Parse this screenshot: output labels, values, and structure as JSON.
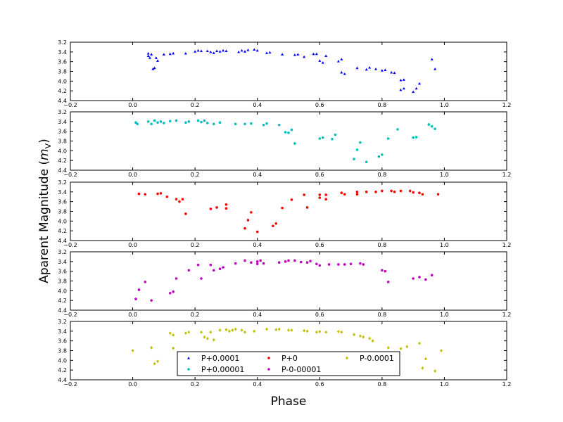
{
  "chart_data": {
    "type": "scatter",
    "xlabel": "Phase",
    "ylabel": "Aparent Magnitude (",
    "ylabel_math": "m",
    "ylabel_sub": "V",
    "ylabel_close": ")",
    "xlim": [
      -0.2,
      1.2
    ],
    "ylim": [
      3.2,
      4.4
    ],
    "y_inverted": true,
    "x_ticks": [
      "−0.2",
      "0.0",
      "0.2",
      "0.4",
      "0.6",
      "0.8",
      "1.0",
      "1.2"
    ],
    "y_ticks": [
      "3.2",
      "3.4",
      "3.6",
      "3.8",
      "4.0",
      "4.2",
      "4.4"
    ],
    "legend_position": "lower-center",
    "series": [
      {
        "name": "P+0.0001",
        "color": "#0000ff",
        "marker": "triangle",
        "points": [
          [
            0.05,
            3.43
          ],
          [
            0.05,
            3.48
          ],
          [
            0.055,
            3.52
          ],
          [
            0.06,
            3.45
          ],
          [
            0.065,
            3.75
          ],
          [
            0.07,
            3.73
          ],
          [
            0.075,
            3.52
          ],
          [
            0.08,
            3.58
          ],
          [
            0.1,
            3.45
          ],
          [
            0.12,
            3.44
          ],
          [
            0.13,
            3.43
          ],
          [
            0.17,
            3.43
          ],
          [
            0.2,
            3.39
          ],
          [
            0.21,
            3.37
          ],
          [
            0.22,
            3.38
          ],
          [
            0.24,
            3.38
          ],
          [
            0.25,
            3.4
          ],
          [
            0.26,
            3.42
          ],
          [
            0.27,
            3.38
          ],
          [
            0.28,
            3.39
          ],
          [
            0.29,
            3.37
          ],
          [
            0.3,
            3.38
          ],
          [
            0.34,
            3.4
          ],
          [
            0.35,
            3.37
          ],
          [
            0.36,
            3.39
          ],
          [
            0.37,
            3.36
          ],
          [
            0.39,
            3.35
          ],
          [
            0.4,
            3.37
          ],
          [
            0.43,
            3.42
          ],
          [
            0.44,
            3.41
          ],
          [
            0.48,
            3.45
          ],
          [
            0.52,
            3.46
          ],
          [
            0.53,
            3.45
          ],
          [
            0.55,
            3.5
          ],
          [
            0.58,
            3.44
          ],
          [
            0.59,
            3.44
          ],
          [
            0.6,
            3.58
          ],
          [
            0.61,
            3.62
          ],
          [
            0.62,
            3.48
          ],
          [
            0.66,
            3.59
          ],
          [
            0.67,
            3.55
          ],
          [
            0.67,
            3.82
          ],
          [
            0.68,
            3.85
          ],
          [
            0.72,
            3.73
          ],
          [
            0.75,
            3.76
          ],
          [
            0.76,
            3.72
          ],
          [
            0.78,
            3.75
          ],
          [
            0.8,
            3.78
          ],
          [
            0.81,
            3.77
          ],
          [
            0.83,
            3.82
          ],
          [
            0.84,
            3.83
          ],
          [
            0.86,
            4.18
          ],
          [
            0.87,
            4.15
          ],
          [
            0.86,
            3.98
          ],
          [
            0.87,
            3.97
          ],
          [
            0.9,
            4.22
          ],
          [
            0.91,
            4.15
          ],
          [
            0.92,
            4.05
          ],
          [
            0.96,
            3.55
          ],
          [
            0.97,
            3.75
          ]
        ]
      },
      {
        "name": "P+0.00001",
        "color": "#00bfbf",
        "marker": "circle",
        "points": [
          [
            0.01,
            3.42
          ],
          [
            0.015,
            3.45
          ],
          [
            0.05,
            3.4
          ],
          [
            0.06,
            3.45
          ],
          [
            0.07,
            3.38
          ],
          [
            0.08,
            3.42
          ],
          [
            0.09,
            3.4
          ],
          [
            0.1,
            3.43
          ],
          [
            0.12,
            3.39
          ],
          [
            0.14,
            3.38
          ],
          [
            0.17,
            3.42
          ],
          [
            0.18,
            3.4
          ],
          [
            0.21,
            3.38
          ],
          [
            0.22,
            3.41
          ],
          [
            0.23,
            3.38
          ],
          [
            0.24,
            3.43
          ],
          [
            0.26,
            3.45
          ],
          [
            0.28,
            3.42
          ],
          [
            0.33,
            3.45
          ],
          [
            0.36,
            3.45
          ],
          [
            0.38,
            3.44
          ],
          [
            0.42,
            3.47
          ],
          [
            0.43,
            3.44
          ],
          [
            0.47,
            3.47
          ],
          [
            0.49,
            3.62
          ],
          [
            0.5,
            3.63
          ],
          [
            0.51,
            3.57
          ],
          [
            0.52,
            3.85
          ],
          [
            0.6,
            3.75
          ],
          [
            0.61,
            3.73
          ],
          [
            0.64,
            3.76
          ],
          [
            0.65,
            3.67
          ],
          [
            0.71,
            4.17
          ],
          [
            0.72,
            3.98
          ],
          [
            0.73,
            3.83
          ],
          [
            0.75,
            4.23
          ],
          [
            0.79,
            4.12
          ],
          [
            0.8,
            4.08
          ],
          [
            0.82,
            3.75
          ],
          [
            0.85,
            3.56
          ],
          [
            0.9,
            3.73
          ],
          [
            0.91,
            3.72
          ],
          [
            0.95,
            3.46
          ],
          [
            0.96,
            3.5
          ],
          [
            0.97,
            3.55
          ]
        ]
      },
      {
        "name": "P+0",
        "color": "#ff0000",
        "marker": "circle",
        "points": [
          [
            0.02,
            3.44
          ],
          [
            0.04,
            3.45
          ],
          [
            0.08,
            3.44
          ],
          [
            0.09,
            3.43
          ],
          [
            0.11,
            3.5
          ],
          [
            0.14,
            3.55
          ],
          [
            0.15,
            3.6
          ],
          [
            0.16,
            3.55
          ],
          [
            0.17,
            3.85
          ],
          [
            0.25,
            3.75
          ],
          [
            0.27,
            3.72
          ],
          [
            0.3,
            3.66
          ],
          [
            0.3,
            3.74
          ],
          [
            0.36,
            4.15
          ],
          [
            0.37,
            3.98
          ],
          [
            0.38,
            3.82
          ],
          [
            0.4,
            4.22
          ],
          [
            0.45,
            4.1
          ],
          [
            0.46,
            4.05
          ],
          [
            0.48,
            3.73
          ],
          [
            0.51,
            3.56
          ],
          [
            0.55,
            3.46
          ],
          [
            0.56,
            3.72
          ],
          [
            0.6,
            3.46
          ],
          [
            0.6,
            3.52
          ],
          [
            0.62,
            3.55
          ],
          [
            0.62,
            3.46
          ],
          [
            0.67,
            3.42
          ],
          [
            0.68,
            3.45
          ],
          [
            0.72,
            3.4
          ],
          [
            0.72,
            3.45
          ],
          [
            0.75,
            3.4
          ],
          [
            0.78,
            3.4
          ],
          [
            0.8,
            3.38
          ],
          [
            0.83,
            3.38
          ],
          [
            0.84,
            3.4
          ],
          [
            0.86,
            3.38
          ],
          [
            0.89,
            3.38
          ],
          [
            0.9,
            3.41
          ],
          [
            0.92,
            3.42
          ],
          [
            0.93,
            3.45
          ],
          [
            0.98,
            3.45
          ]
        ]
      },
      {
        "name": "P-0-00001",
        "color": "#bf00bf",
        "marker": "circle",
        "points": [
          [
            0.01,
            4.17
          ],
          [
            0.02,
            3.98
          ],
          [
            0.04,
            3.82
          ],
          [
            0.06,
            4.2
          ],
          [
            0.12,
            4.05
          ],
          [
            0.13,
            4.02
          ],
          [
            0.14,
            3.75
          ],
          [
            0.18,
            3.58
          ],
          [
            0.21,
            3.47
          ],
          [
            0.22,
            3.75
          ],
          [
            0.25,
            3.47
          ],
          [
            0.26,
            3.58
          ],
          [
            0.28,
            3.55
          ],
          [
            0.29,
            3.52
          ],
          [
            0.33,
            3.44
          ],
          [
            0.36,
            3.38
          ],
          [
            0.38,
            3.42
          ],
          [
            0.4,
            3.4
          ],
          [
            0.4,
            3.45
          ],
          [
            0.41,
            3.38
          ],
          [
            0.42,
            3.44
          ],
          [
            0.47,
            3.42
          ],
          [
            0.49,
            3.4
          ],
          [
            0.5,
            3.38
          ],
          [
            0.52,
            3.38
          ],
          [
            0.54,
            3.41
          ],
          [
            0.56,
            3.42
          ],
          [
            0.57,
            3.39
          ],
          [
            0.59,
            3.45
          ],
          [
            0.6,
            3.48
          ],
          [
            0.63,
            3.46
          ],
          [
            0.66,
            3.46
          ],
          [
            0.68,
            3.46
          ],
          [
            0.7,
            3.45
          ],
          [
            0.73,
            3.44
          ],
          [
            0.74,
            3.46
          ],
          [
            0.8,
            3.58
          ],
          [
            0.81,
            3.6
          ],
          [
            0.82,
            3.82
          ],
          [
            0.9,
            3.75
          ],
          [
            0.92,
            3.72
          ],
          [
            0.94,
            3.77
          ],
          [
            0.96,
            3.68
          ]
        ]
      },
      {
        "name": "P-0.0001",
        "color": "#bfbf00",
        "marker": "diamond",
        "points": [
          [
            0.0,
            3.8
          ],
          [
            0.06,
            3.74
          ],
          [
            0.07,
            4.07
          ],
          [
            0.08,
            4.02
          ],
          [
            0.12,
            3.44
          ],
          [
            0.13,
            3.48
          ],
          [
            0.13,
            3.75
          ],
          [
            0.17,
            3.44
          ],
          [
            0.18,
            3.42
          ],
          [
            0.22,
            3.42
          ],
          [
            0.23,
            3.52
          ],
          [
            0.24,
            3.55
          ],
          [
            0.25,
            3.42
          ],
          [
            0.26,
            3.58
          ],
          [
            0.28,
            3.38
          ],
          [
            0.3,
            3.37
          ],
          [
            0.31,
            3.4
          ],
          [
            0.32,
            3.38
          ],
          [
            0.33,
            3.36
          ],
          [
            0.35,
            3.38
          ],
          [
            0.36,
            3.42
          ],
          [
            0.39,
            3.4
          ],
          [
            0.43,
            3.36
          ],
          [
            0.46,
            3.37
          ],
          [
            0.47,
            3.36
          ],
          [
            0.5,
            3.38
          ],
          [
            0.51,
            3.38
          ],
          [
            0.55,
            3.39
          ],
          [
            0.56,
            3.4
          ],
          [
            0.59,
            3.42
          ],
          [
            0.6,
            3.41
          ],
          [
            0.62,
            3.42
          ],
          [
            0.66,
            3.41
          ],
          [
            0.67,
            3.42
          ],
          [
            0.71,
            3.47
          ],
          [
            0.73,
            3.5
          ],
          [
            0.74,
            3.52
          ],
          [
            0.76,
            3.55
          ],
          [
            0.77,
            3.6
          ],
          [
            0.82,
            3.74
          ],
          [
            0.86,
            3.76
          ],
          [
            0.88,
            3.72
          ],
          [
            0.92,
            3.65
          ],
          [
            0.93,
            4.16
          ],
          [
            0.94,
            3.97
          ],
          [
            0.97,
            4.22
          ],
          [
            0.99,
            3.8
          ]
        ]
      }
    ]
  }
}
